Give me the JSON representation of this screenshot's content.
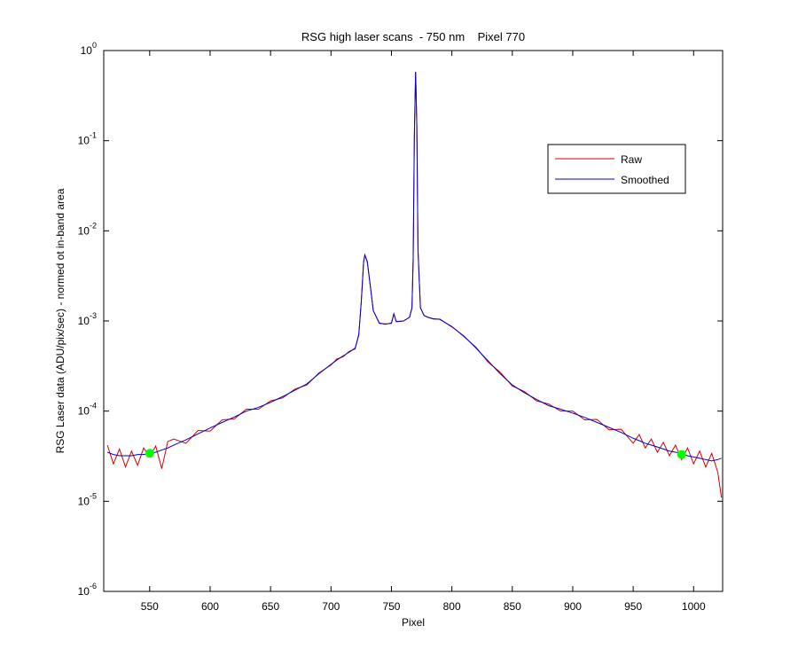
{
  "chart_data": {
    "type": "line",
    "title": "RSG high laser scans  - 750 nm    Pixel 770",
    "xlabel": "Pixel",
    "ylabel": "RSG Laser data (ADU/pix/sec) - normed ot in-band area",
    "log_y": true,
    "legend": "upper right",
    "xlim": [
      512,
      1024
    ],
    "ylim": [
      1e-06,
      1
    ],
    "xticks": [
      550,
      600,
      650,
      700,
      750,
      800,
      850,
      900,
      950,
      1000
    ],
    "yticks": [
      {
        "value": 1e-06,
        "label": "10^-6"
      },
      {
        "value": 1e-05,
        "label": "10^-5"
      },
      {
        "value": 0.0001,
        "label": "10^-4"
      },
      {
        "value": 0.001,
        "label": "10^-3"
      },
      {
        "value": 0.01,
        "label": "10^-2"
      },
      {
        "value": 0.1,
        "label": "10^-1"
      },
      {
        "value": 1,
        "label": "10^0"
      }
    ],
    "x": [
      515,
      520,
      525,
      530,
      535,
      540,
      545,
      550,
      555,
      560,
      565,
      570,
      580,
      590,
      600,
      610,
      620,
      630,
      640,
      650,
      660,
      670,
      680,
      690,
      700,
      705,
      710,
      715,
      720,
      723,
      725,
      727,
      728,
      730,
      732,
      735,
      740,
      745,
      750,
      752,
      754,
      760,
      765,
      767,
      768,
      769,
      770,
      771,
      772,
      774,
      777,
      780,
      785,
      790,
      800,
      810,
      820,
      830,
      840,
      850,
      860,
      870,
      880,
      890,
      900,
      910,
      920,
      930,
      940,
      950,
      955,
      960,
      965,
      970,
      975,
      980,
      985,
      990,
      995,
      1000,
      1005,
      1010,
      1015,
      1020,
      1023
    ],
    "series": [
      {
        "name": "Raw",
        "color": "#d40000",
        "values": [
          4.2e-05,
          2.6e-05,
          3.8e-05,
          2.4e-05,
          3.6e-05,
          2.5e-05,
          3.9e-05,
          3.1e-05,
          4.1e-05,
          2.3e-05,
          4.6e-05,
          4.9e-05,
          4.4e-05,
          6.1e-05,
          6e-05,
          8e-05,
          8.2e-05,
          0.000105,
          0.000105,
          0.00013,
          0.00014,
          0.000175,
          0.000195,
          0.000265,
          0.000325,
          0.00038,
          0.0004,
          0.00046,
          0.00049,
          0.00071,
          0.0016,
          0.0046,
          0.0054,
          0.0045,
          0.0028,
          0.0013,
          0.00094,
          0.00093,
          0.00094,
          0.0012,
          0.00099,
          0.001,
          0.0011,
          0.0014,
          0.005,
          0.12,
          0.58,
          0.15,
          0.006,
          0.0014,
          0.00115,
          0.0011,
          0.00106,
          0.00104,
          0.00087,
          0.00067,
          0.00051,
          0.00035,
          0.00027,
          0.00019,
          0.000165,
          0.00013,
          0.00012,
          0.0001,
          0.0001,
          8e-05,
          8.1e-05,
          6.2e-05,
          6.3e-05,
          4.4e-05,
          5.5e-05,
          3.9e-05,
          4.9e-05,
          3.5e-05,
          4.5e-05,
          3.2e-05,
          4.2e-05,
          2.9e-05,
          3.9e-05,
          2.6e-05,
          3.6e-05,
          2.4e-05,
          3.4e-05,
          2.1e-05,
          1.1e-05
        ]
      },
      {
        "name": "Smoothed",
        "color": "#0000d4",
        "values": [
          3.5e-05,
          3.3e-05,
          3.2e-05,
          3.2e-05,
          3.2e-05,
          3.3e-05,
          3.3e-05,
          3.4e-05,
          3.5e-05,
          3.7e-05,
          3.9e-05,
          4.2e-05,
          4.8e-05,
          5.6e-05,
          6.5e-05,
          7.5e-05,
          8.6e-05,
          0.0001,
          0.00011,
          0.000125,
          0.000145,
          0.00017,
          0.0002,
          0.00026,
          0.00033,
          0.00037,
          0.00041,
          0.00045,
          0.0005,
          0.0007,
          0.0016,
          0.0045,
          0.0054,
          0.0046,
          0.0028,
          0.0013,
          0.00095,
          0.00092,
          0.00095,
          0.0012,
          0.00098,
          0.001,
          0.0011,
          0.0014,
          0.005,
          0.12,
          0.58,
          0.15,
          0.006,
          0.0014,
          0.00115,
          0.0011,
          0.00105,
          0.00105,
          0.00086,
          0.00068,
          0.0005,
          0.00036,
          0.00026,
          0.000195,
          0.00016,
          0.000135,
          0.000115,
          0.000105,
          9.5e-05,
          8.5e-05,
          7.5e-05,
          6.6e-05,
          5.8e-05,
          5e-05,
          4.7e-05,
          4.4e-05,
          4.2e-05,
          4e-05,
          3.8e-05,
          3.6e-05,
          3.5e-05,
          3.4e-05,
          3.2e-05,
          3.1e-05,
          3e-05,
          2.9e-05,
          2.8e-05,
          2.9e-05,
          3e-05
        ]
      }
    ],
    "markers": {
      "color": "#00ff00",
      "x": [
        550,
        990
      ],
      "values": [
        3.4e-05,
        3.3e-05
      ]
    }
  }
}
